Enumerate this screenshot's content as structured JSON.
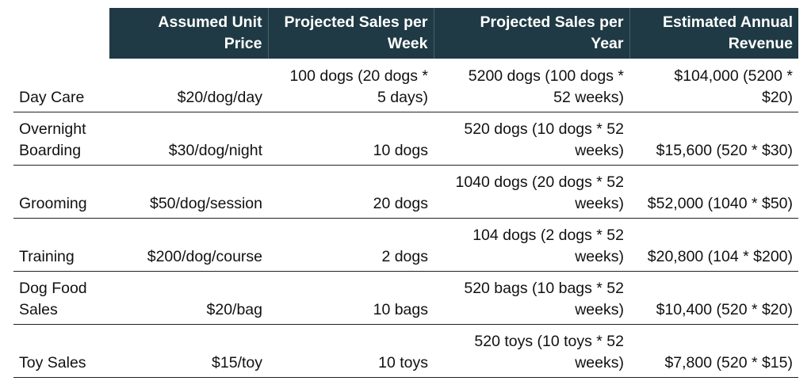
{
  "table": {
    "headers": [
      "",
      "Assumed Unit Price",
      "Projected Sales per Week",
      "Projected Sales per Year",
      "Estimated Annual Revenue"
    ],
    "header_lines": [
      [],
      [
        "Assumed Unit",
        "Price"
      ],
      [
        "Projected Sales per",
        "Week"
      ],
      [
        "Projected Sales per",
        "Year"
      ],
      [
        "Estimated Annual",
        "Revenue"
      ]
    ],
    "rows": [
      {
        "service": [
          "Day Care"
        ],
        "unit_price": [
          "$20/dog/day"
        ],
        "sales_week": [
          "100 dogs (20 dogs *",
          "5 days)"
        ],
        "sales_year": [
          "5200 dogs (100 dogs *",
          "52 weeks)"
        ],
        "revenue": [
          "$104,000 (5200 *",
          "$20)"
        ]
      },
      {
        "service": [
          "Overnight",
          "Boarding"
        ],
        "unit_price": [
          "$30/dog/night"
        ],
        "sales_week": [
          "10 dogs"
        ],
        "sales_year": [
          "520 dogs (10 dogs * 52",
          "weeks)"
        ],
        "revenue": [
          "$15,600 (520 * $30)"
        ]
      },
      {
        "service": [
          "Grooming"
        ],
        "unit_price": [
          "$50/dog/session"
        ],
        "sales_week": [
          "20 dogs"
        ],
        "sales_year": [
          "1040 dogs (20 dogs * 52",
          "weeks)"
        ],
        "revenue": [
          "$52,000 (1040 * $50)"
        ]
      },
      {
        "service": [
          "Training"
        ],
        "unit_price": [
          "$200/dog/course"
        ],
        "sales_week": [
          "2 dogs"
        ],
        "sales_year": [
          "104 dogs (2 dogs * 52",
          "weeks)"
        ],
        "revenue": [
          "$20,800 (104 * $200)"
        ]
      },
      {
        "service": [
          "Dog Food",
          "Sales"
        ],
        "unit_price": [
          "$20/bag"
        ],
        "sales_week": [
          "10 bags"
        ],
        "sales_year": [
          "520 bags (10 bags * 52",
          "weeks)"
        ],
        "revenue": [
          "$10,400 (520 * $20)"
        ]
      },
      {
        "service": [
          "Toy Sales"
        ],
        "unit_price": [
          "$15/toy"
        ],
        "sales_week": [
          "10 toys"
        ],
        "sales_year": [
          "520 toys (10 toys * 52",
          "weeks)"
        ],
        "revenue": [
          "$7,800 (520 * $15)"
        ]
      }
    ],
    "colors": {
      "header_bg": "#1f3a44",
      "header_text": "#ffffff",
      "rule": "#222222"
    }
  }
}
